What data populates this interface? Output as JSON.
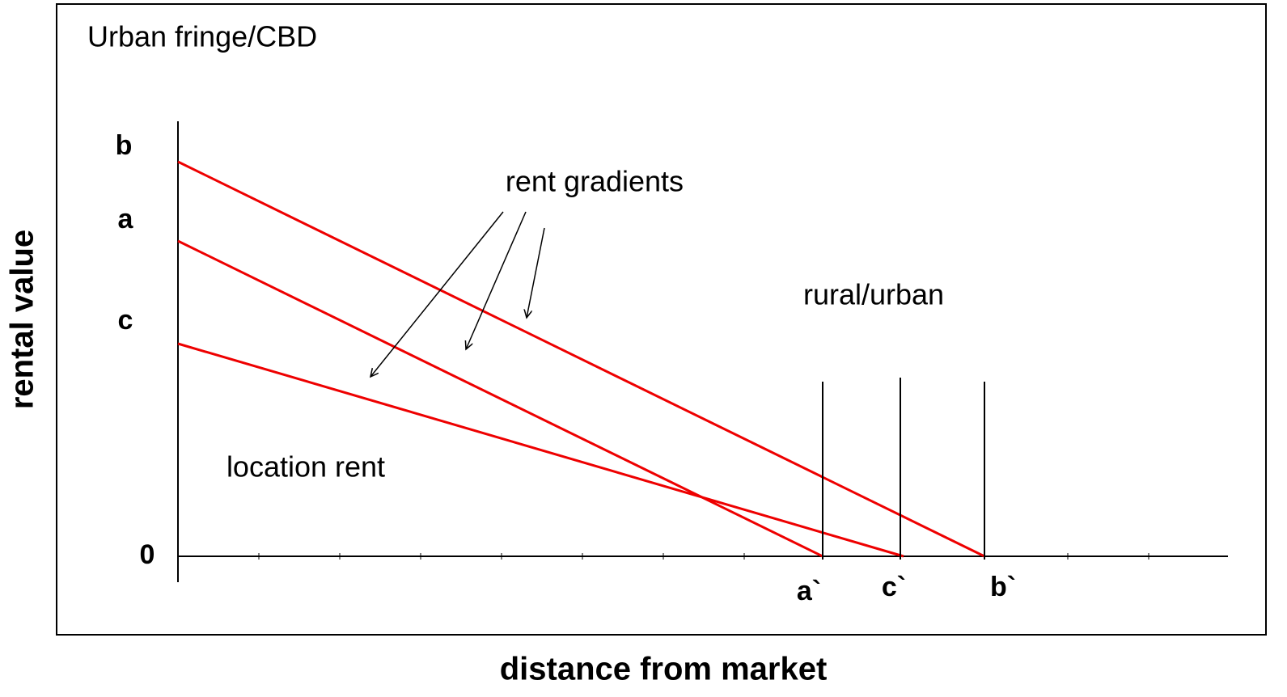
{
  "frame_title": "Urban fringe/CBD",
  "y_axis_label": "rental value",
  "x_axis_label": "distance from market",
  "y_labels": [
    "b",
    "a",
    "c",
    "0"
  ],
  "x_labels": [
    "a`",
    "c`",
    "b`"
  ],
  "annotations": {
    "gradients": "rent gradients",
    "boundary": "rural/urban",
    "area": "location rent"
  }
}
